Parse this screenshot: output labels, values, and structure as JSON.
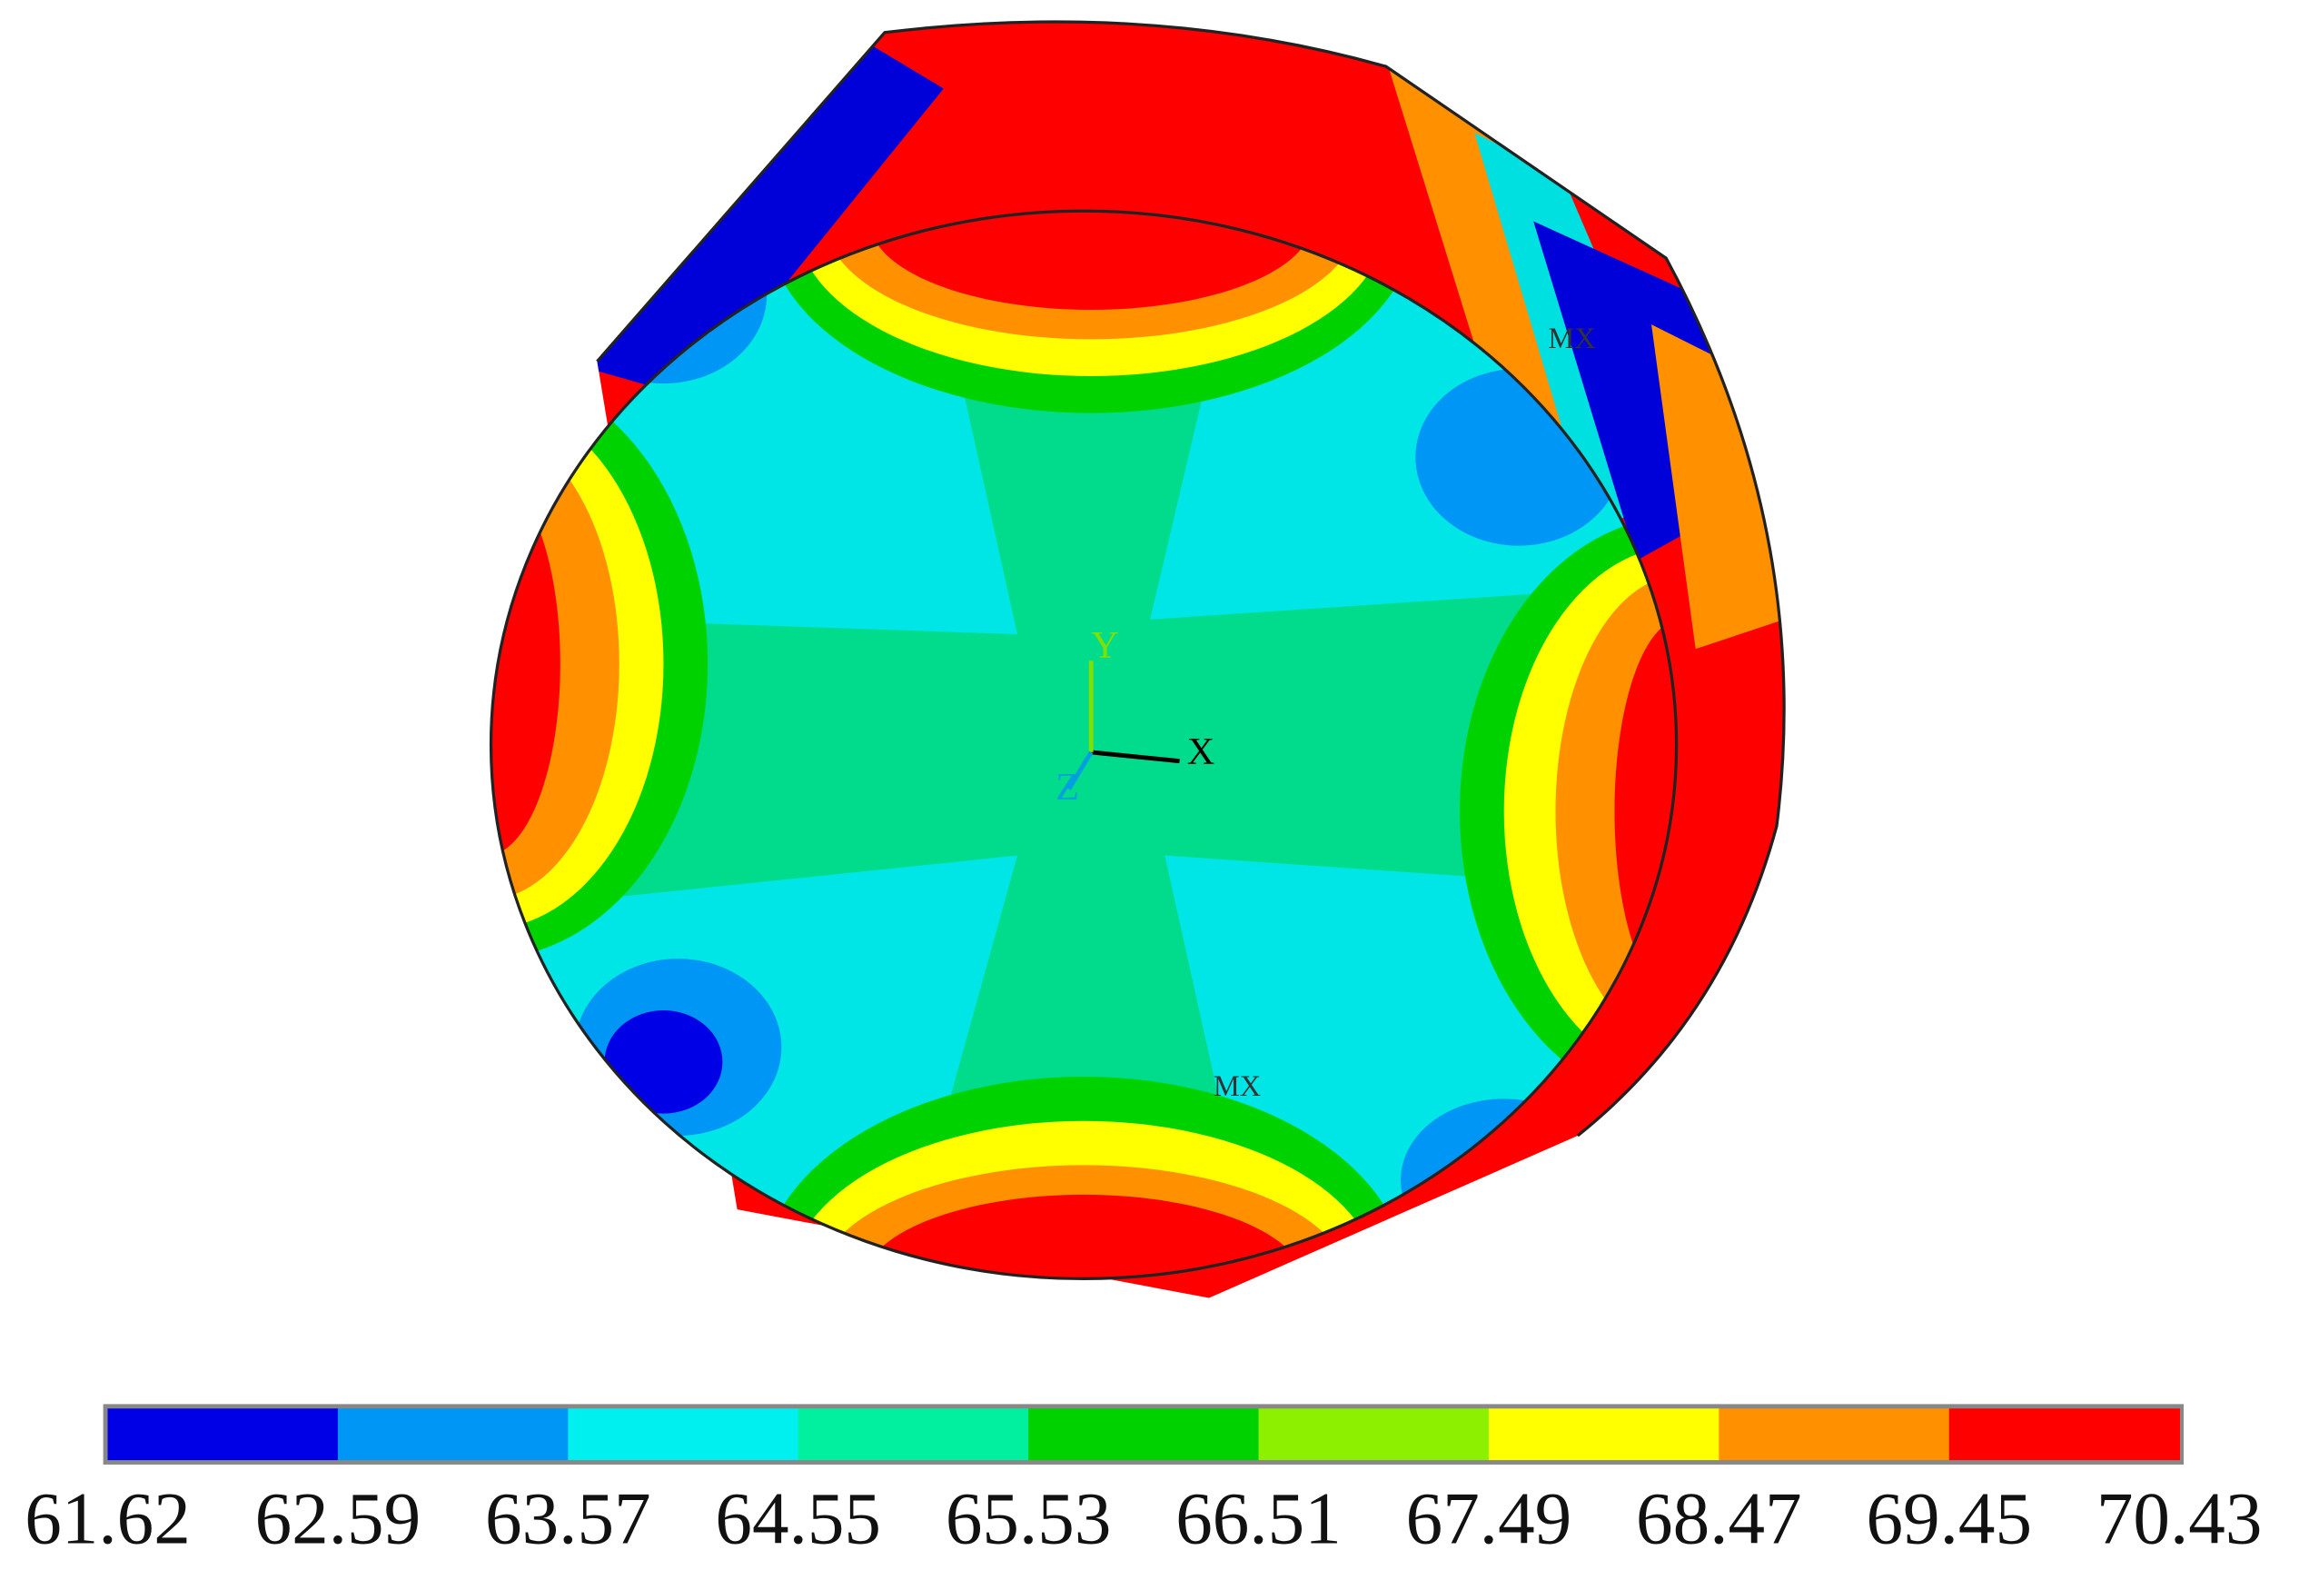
{
  "annotations": {
    "x_axis": "X",
    "y_axis": "Y",
    "z_axis": "Z",
    "max_marker_top": "MX",
    "max_marker_bottom": "MX"
  },
  "colorbar": {
    "colors": [
      "#0000e6",
      "#0096f5",
      "#00f0f0",
      "#00f0a0",
      "#00d200",
      "#8cf000",
      "#ffff00",
      "#ff9000",
      "#ff0000"
    ],
    "labels": [
      "61.62",
      "62.59",
      "63.57",
      "64.55",
      "65.53",
      "66.51",
      "67.49",
      "68.47",
      "69.45",
      "70.43"
    ]
  }
}
